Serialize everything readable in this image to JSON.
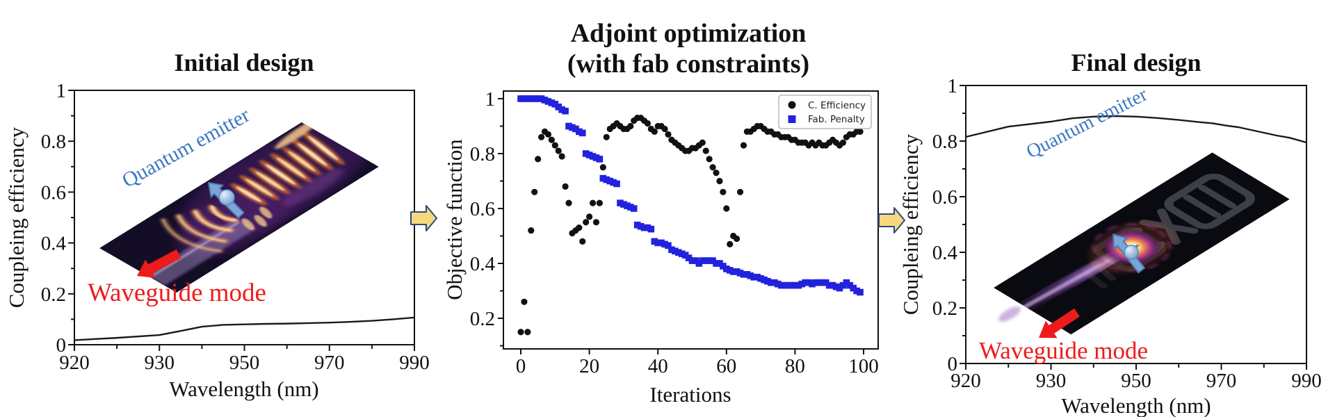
{
  "figure": {
    "colors": {
      "accent_red": "#ee1b1b",
      "accent_blue": "#3c78c2",
      "flow_arrow_fill": "#f7d87d",
      "flow_arrow_stroke": "#2a4a7f",
      "scatter_black": "#111111",
      "scatter_blue": "#2222dd",
      "curve": "#1a1a1a"
    },
    "panels": {
      "initial": {
        "title": "Initial design",
        "xlabel": "Wavelength (nm)",
        "ylabel": "Coupleing efficiency",
        "x_tick_labels": [
          "920",
          "930",
          "950",
          "970",
          "990"
        ],
        "y_tick_labels": [
          "0",
          "0.2",
          "0.4",
          "0.6",
          "0.8",
          "1"
        ],
        "annotations": {
          "quantum_emitter": "Quantum emitter",
          "waveguide_mode": "Waveguide mode"
        }
      },
      "adjoint": {
        "title_line1": "Adjoint optimization",
        "title_line2": "(with fab constraints)",
        "xlabel": "Iterations",
        "ylabel": "Objective function",
        "x_tick_labels": [
          "0",
          "20",
          "40",
          "60",
          "80",
          "100"
        ],
        "y_tick_labels": [
          "0.2",
          "0.4",
          "0.6",
          "0.8",
          "1"
        ],
        "legend": {
          "items": [
            {
              "label": "C. Efficiency",
              "marker": "circle",
              "color": "#111111"
            },
            {
              "label": "Fab. Penalty",
              "marker": "square",
              "color": "#2222dd"
            }
          ]
        }
      },
      "final": {
        "title": "Final design",
        "xlabel": "Wavelength (nm)",
        "ylabel": "Coupleing efficiency",
        "x_tick_labels": [
          "920",
          "930",
          "950",
          "970",
          "990"
        ],
        "y_tick_labels": [
          "0",
          "0.2",
          "0.4",
          "0.6",
          "0.8",
          "1"
        ],
        "annotations": {
          "quantum_emitter": "Quantum emitter",
          "waveguide_mode": "Waveguide mode"
        }
      }
    }
  },
  "chart_data": [
    {
      "type": "line",
      "title": "Initial design",
      "xlabel": "Wavelength (nm)",
      "ylabel": "Coupleing efficiency",
      "x_ticks": [
        920,
        930,
        950,
        970,
        990
      ],
      "x_ticks_note": "tick labels are evenly spaced in the original figure (non-linear wavelength axis)",
      "ylim": [
        0,
        1
      ],
      "grid": false,
      "x": [
        920,
        925,
        930,
        935,
        940,
        945,
        950,
        955,
        960,
        965,
        970,
        975,
        980,
        985,
        990
      ],
      "y": [
        0.018,
        0.027,
        0.038,
        0.054,
        0.071,
        0.078,
        0.08,
        0.082,
        0.083,
        0.085,
        0.087,
        0.09,
        0.094,
        0.1,
        0.107
      ]
    },
    {
      "type": "scatter",
      "title": "Adjoint optimization (with fab constraints)",
      "xlabel": "Iterations",
      "ylabel": "Objective function",
      "xlim": [
        -5,
        104
      ],
      "ylim": [
        0.09,
        1.03
      ],
      "grid": false,
      "legend_position": "upper right",
      "x": [
        0,
        1,
        2,
        3,
        4,
        5,
        6,
        7,
        8,
        9,
        10,
        11,
        12,
        13,
        14,
        15,
        16,
        17,
        18,
        19,
        20,
        21,
        22,
        23,
        24,
        25,
        26,
        27,
        28,
        29,
        30,
        31,
        32,
        33,
        34,
        35,
        36,
        37,
        38,
        39,
        40,
        41,
        42,
        43,
        44,
        45,
        46,
        47,
        48,
        49,
        50,
        51,
        52,
        53,
        54,
        55,
        56,
        57,
        58,
        59,
        60,
        61,
        62,
        63,
        64,
        65,
        66,
        67,
        68,
        69,
        70,
        71,
        72,
        73,
        74,
        75,
        76,
        77,
        78,
        79,
        80,
        81,
        82,
        83,
        84,
        85,
        86,
        87,
        88,
        89,
        90,
        91,
        92,
        93,
        94,
        95,
        96,
        97,
        98,
        99
      ],
      "series": [
        {
          "name": "C. Efficiency",
          "marker": "circle",
          "color": "#111111",
          "values": [
            0.15,
            0.26,
            0.15,
            0.52,
            0.66,
            0.78,
            0.86,
            0.88,
            0.87,
            0.85,
            0.83,
            0.81,
            0.79,
            0.68,
            0.62,
            0.51,
            0.52,
            0.53,
            0.48,
            0.55,
            0.57,
            0.62,
            0.55,
            0.62,
            0.75,
            0.86,
            0.89,
            0.9,
            0.91,
            0.9,
            0.89,
            0.89,
            0.9,
            0.92,
            0.93,
            0.93,
            0.92,
            0.91,
            0.89,
            0.88,
            0.9,
            0.9,
            0.89,
            0.87,
            0.85,
            0.84,
            0.83,
            0.82,
            0.81,
            0.81,
            0.82,
            0.82,
            0.83,
            0.84,
            0.81,
            0.78,
            0.75,
            0.73,
            0.7,
            0.66,
            0.6,
            0.47,
            0.5,
            0.49,
            0.66,
            0.83,
            0.88,
            0.88,
            0.89,
            0.9,
            0.9,
            0.89,
            0.88,
            0.88,
            0.87,
            0.87,
            0.86,
            0.86,
            0.86,
            0.85,
            0.85,
            0.84,
            0.84,
            0.84,
            0.83,
            0.84,
            0.83,
            0.84,
            0.83,
            0.83,
            0.84,
            0.85,
            0.84,
            0.83,
            0.84,
            0.86,
            0.87,
            0.87,
            0.88,
            0.88
          ]
        },
        {
          "name": "Fab. Penalty",
          "marker": "square",
          "color": "#2222dd",
          "values": [
            1.0,
            1.0,
            1.0,
            1.0,
            1.0,
            1.0,
            1.0,
            0.995,
            0.99,
            0.985,
            0.98,
            0.97,
            0.96,
            0.955,
            0.9,
            0.895,
            0.89,
            0.88,
            0.875,
            0.8,
            0.795,
            0.79,
            0.785,
            0.78,
            0.71,
            0.705,
            0.7,
            0.695,
            0.69,
            0.62,
            0.615,
            0.61,
            0.605,
            0.6,
            0.54,
            0.535,
            0.53,
            0.53,
            0.525,
            0.48,
            0.475,
            0.475,
            0.47,
            0.465,
            0.45,
            0.445,
            0.44,
            0.435,
            0.43,
            0.42,
            0.41,
            0.41,
            0.4,
            0.41,
            0.41,
            0.41,
            0.41,
            0.4,
            0.4,
            0.39,
            0.38,
            0.375,
            0.37,
            0.37,
            0.365,
            0.36,
            0.36,
            0.355,
            0.35,
            0.35,
            0.345,
            0.34,
            0.335,
            0.33,
            0.33,
            0.325,
            0.32,
            0.32,
            0.32,
            0.32,
            0.32,
            0.32,
            0.325,
            0.33,
            0.33,
            0.325,
            0.33,
            0.33,
            0.33,
            0.33,
            0.32,
            0.32,
            0.315,
            0.31,
            0.32,
            0.33,
            0.32,
            0.31,
            0.3,
            0.295
          ]
        }
      ]
    },
    {
      "type": "line",
      "title": "Final design",
      "xlabel": "Wavelength (nm)",
      "ylabel": "Coupleing efficiency",
      "x_ticks": [
        920,
        930,
        950,
        970,
        990
      ],
      "x_ticks_note": "tick labels are evenly spaced in the original figure (non-linear wavelength axis)",
      "ylim": [
        0,
        1
      ],
      "grid": false,
      "x": [
        920,
        925,
        930,
        935,
        940,
        945,
        950,
        955,
        960,
        965,
        968,
        971,
        974,
        977,
        980,
        983,
        986,
        990
      ],
      "y": [
        0.815,
        0.852,
        0.87,
        0.882,
        0.888,
        0.89,
        0.888,
        0.883,
        0.876,
        0.868,
        0.864,
        0.856,
        0.85,
        0.84,
        0.83,
        0.82,
        0.812,
        0.795
      ]
    }
  ]
}
